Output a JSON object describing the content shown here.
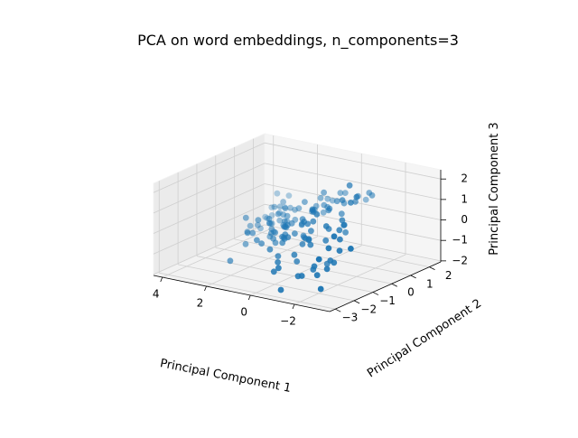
{
  "chart_data": {
    "type": "scatter",
    "title": "PCA on word embeddings, n_components=3",
    "xlabel": "Principal Component 1",
    "ylabel": "Principal Component 2",
    "zlabel": "Principal Component 3",
    "xlim": [
      -3.6,
      4.4
    ],
    "ylim": [
      -3.3,
      2.6
    ],
    "zlim": [
      -2.05,
      2.45
    ],
    "xticks": [
      -2,
      0,
      2,
      4
    ],
    "yticks": [
      -3,
      -2,
      -1,
      0,
      1,
      2
    ],
    "zticks": [
      -2,
      -1,
      0,
      1,
      2
    ],
    "grid": true,
    "point_color": "#1f77b4",
    "points": [
      [
        -1.58,
        0.12,
        2.26
      ],
      [
        -2.09,
        -0.1,
        1.9
      ],
      [
        -1.32,
        1.62,
        1.1
      ],
      [
        -1.11,
        1.71,
        1.14
      ],
      [
        -1.89,
        -0.18,
        1.61
      ],
      [
        -1.62,
        -0.32,
        0.75
      ],
      [
        -1.21,
        0.17,
        1.44
      ],
      [
        -1.21,
        0.86,
        1.08
      ],
      [
        -0.68,
        1.62,
        0.92
      ],
      [
        -0.59,
        2.15,
        0.51
      ],
      [
        -0.1,
        1.62,
        0.95
      ],
      [
        -0.7,
        0.86,
        0.89
      ],
      [
        -0.06,
        1.41,
        1.03
      ],
      [
        -1.77,
        -0.64,
        0.43
      ],
      [
        -1.96,
        -0.63,
        0.71
      ],
      [
        -0.54,
        0.67,
        1.04
      ],
      [
        0.11,
        0.73,
        1.29
      ],
      [
        0.52,
        1.67,
        0.42
      ],
      [
        0.54,
        1.06,
        0.79
      ],
      [
        -0.94,
        0.45,
        0.6
      ],
      [
        -0.02,
        0.77,
        0.59
      ],
      [
        -2.64,
        -1.94,
        0.85
      ],
      [
        -3.2,
        -1.71,
        0.28
      ],
      [
        -2.16,
        -1.07,
        0.24
      ],
      [
        -1.49,
        -1.01,
        0.71
      ],
      [
        -0.93,
        -0.86,
        1.11
      ],
      [
        -0.27,
        -0.26,
        0.84
      ],
      [
        0.41,
        1.06,
        0.11
      ],
      [
        0.56,
        1.46,
        0.58
      ],
      [
        0.1,
        0.73,
        0.68
      ],
      [
        0.68,
        0.38,
        0.85
      ],
      [
        -1.26,
        0.22,
        0.22
      ],
      [
        -0.55,
        0.21,
        0.78
      ],
      [
        -0.16,
        -0.19,
        0.86
      ],
      [
        0.59,
        0.89,
        0.46
      ],
      [
        0.31,
        0.46,
        0.52
      ],
      [
        -0.43,
        0.4,
        0.76
      ],
      [
        -2.34,
        -1.88,
        0.18
      ],
      [
        -1.21,
        -0.55,
        0.33
      ],
      [
        -1.27,
        -0.78,
        -0.13
      ],
      [
        1.16,
        0.63,
        0.33
      ],
      [
        1.52,
        0.84,
        0.09
      ],
      [
        0.19,
        0.22,
        0.66
      ],
      [
        -1.37,
        0.15,
        -0.09
      ],
      [
        0.83,
        0.94,
        0.11
      ],
      [
        -2.45,
        -1.43,
        -0.1
      ],
      [
        -0.62,
        -0.69,
        0.62
      ],
      [
        -0.37,
        -0.69,
        0.45
      ],
      [
        0.22,
        -0.27,
        0.38
      ],
      [
        0.31,
        -0.21,
        0.05
      ],
      [
        0.58,
        0.12,
        -0.09
      ],
      [
        2.28,
        1.41,
        0.38
      ],
      [
        2.58,
        1.54,
        -0.31
      ],
      [
        1.82,
        0.95,
        0.07
      ],
      [
        1.92,
        0.69,
        0.45
      ],
      [
        1.26,
        0.55,
        -0.22
      ],
      [
        1.61,
        0.53,
        -0.37
      ],
      [
        0.24,
        -0.17,
        -0.56
      ],
      [
        -0.54,
        -0.71,
        0.15
      ],
      [
        1.44,
        0.24,
        0.43
      ],
      [
        2.64,
        1.21,
        0.49
      ],
      [
        2.97,
        1.3,
        -0.3
      ],
      [
        -0.14,
        -0.61,
        0.47
      ],
      [
        -1.94,
        -1.32,
        -0.74
      ],
      [
        -2.45,
        -2.52,
        -0.07
      ],
      [
        -0.61,
        -0.91,
        -0.15
      ],
      [
        0.74,
        -0.23,
        0.04
      ],
      [
        1.29,
        0.17,
        0.11
      ],
      [
        1.61,
        0.33,
        0.04
      ],
      [
        2.2,
        0.85,
        0.09
      ],
      [
        2.15,
        0.76,
        -0.16
      ],
      [
        0.32,
        -0.11,
        -0.52
      ],
      [
        -2.07,
        -1.28,
        -0.83
      ],
      [
        -0.95,
        -1.22,
        -0.23
      ],
      [
        1.23,
        -0.11,
        -0.2
      ],
      [
        2.09,
        0.42,
        0.28
      ],
      [
        -0.57,
        -1.04,
        -0.08
      ],
      [
        1.12,
        -0.13,
        -0.25
      ],
      [
        1.29,
        0.11,
        -0.42
      ],
      [
        1.73,
        0.2,
        0.1
      ],
      [
        -1.27,
        -0.71,
        -1.3
      ],
      [
        -2.07,
        -1.65,
        -0.99
      ],
      [
        -1.07,
        -1.45,
        0.13
      ],
      [
        -0.44,
        -1.05,
        -0.38
      ],
      [
        0.7,
        -0.51,
        0.08
      ],
      [
        1.04,
        -0.26,
        0.09
      ],
      [
        0.2,
        -0.71,
        -0.14
      ],
      [
        1.98,
        0.57,
        -0.42
      ],
      [
        2.86,
        1.19,
        -0.62
      ],
      [
        1.15,
        -0.64,
        -0.33
      ],
      [
        0.58,
        -0.93,
        -0.3
      ],
      [
        0.42,
        -0.96,
        -0.13
      ],
      [
        1.47,
        -0.58,
        0.24
      ],
      [
        1.79,
        0.04,
        -0.71
      ],
      [
        2.65,
        0.69,
        -0.51
      ],
      [
        -1.93,
        -2.01,
        -1.17
      ],
      [
        -1.61,
        -1.79,
        -0.9
      ],
      [
        0.75,
        -0.62,
        0.03
      ],
      [
        0.73,
        -0.67,
        -0.47
      ],
      [
        2.09,
        0.29,
        -0.48
      ],
      [
        3.09,
        1.1,
        -0.71
      ],
      [
        0.04,
        -1.26,
        -0.06
      ],
      [
        0.46,
        -0.95,
        -0.36
      ],
      [
        1.17,
        -0.92,
        0.24
      ],
      [
        1.61,
        -0.29,
        -0.4
      ],
      [
        1.85,
        -0.72,
        0.16
      ],
      [
        -2.35,
        -2.31,
        -1.63
      ],
      [
        -0.49,
        -1.54,
        -0.69
      ],
      [
        -1.39,
        -1.59,
        -1.19
      ],
      [
        0.48,
        -1.04,
        -0.52
      ],
      [
        1.13,
        -0.65,
        -0.82
      ],
      [
        1.39,
        -0.57,
        -0.45
      ],
      [
        1.74,
        -0.23,
        -0.83
      ],
      [
        2.34,
        0.5,
        -0.62
      ],
      [
        -0.47,
        -1.38,
        -1.08
      ],
      [
        1.2,
        -0.68,
        -0.62
      ],
      [
        2.43,
        -0.07,
        -0.48
      ],
      [
        2.72,
        0.42,
        -0.91
      ],
      [
        -1.36,
        -2.16,
        -1.27
      ],
      [
        0.23,
        -1.56,
        -0.9
      ],
      [
        1.24,
        -1.26,
        -0.63
      ],
      [
        2.57,
        -0.3,
        -0.46
      ],
      [
        -1.06,
        -2.01,
        -1.41
      ],
      [
        0.55,
        -1.62,
        -0.62
      ],
      [
        1.79,
        -1.09,
        -0.31
      ],
      [
        2.36,
        -0.78,
        0.18
      ],
      [
        -0.56,
        -2.46,
        -0.94
      ],
      [
        1.39,
        -1.33,
        -0.47
      ],
      [
        2.67,
        -0.34,
        -0.75
      ],
      [
        -0.93,
        -2.77,
        -1.8
      ],
      [
        -0.24,
        -2.33,
        -1.24
      ],
      [
        2.19,
        -0.99,
        -0.98
      ],
      [
        2.15,
        -1.86,
        -1.43
      ],
      [
        -0.15,
        -2.02,
        -0.93
      ],
      [
        2.07,
        -1.03,
        -0.39
      ]
    ]
  }
}
